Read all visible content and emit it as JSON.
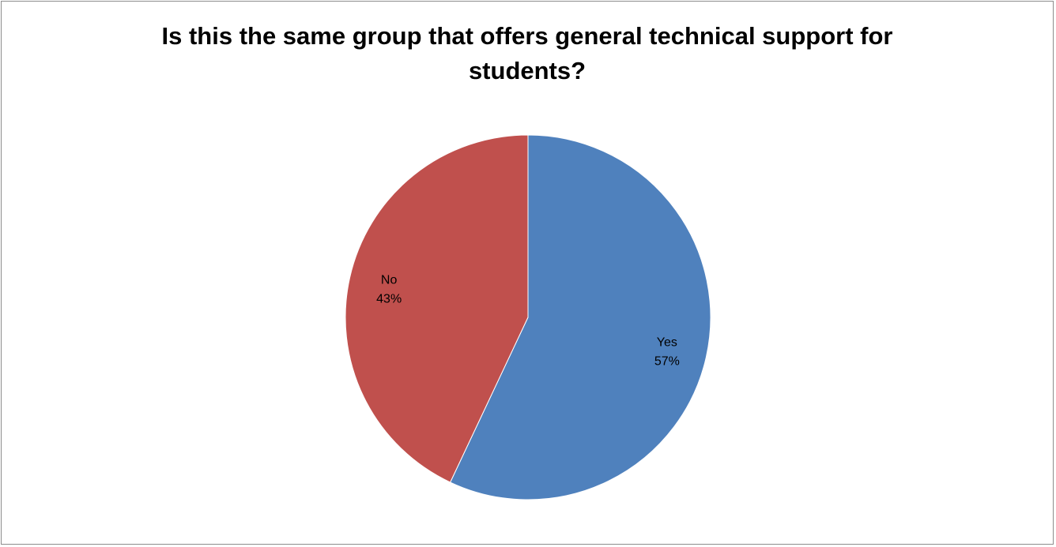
{
  "chart_data": {
    "type": "pie",
    "title_lines": [
      "Is this the same group that offers general technical support for",
      "students?"
    ],
    "slices": [
      {
        "label": "Yes",
        "value": 57,
        "value_label": "57%",
        "color": "#4F81BD"
      },
      {
        "label": "No",
        "value": 43,
        "value_label": "43%",
        "color": "#C0504D"
      }
    ],
    "start_angle_deg": 0,
    "direction": "clockwise",
    "legend": "none",
    "data_labels": "inside"
  }
}
